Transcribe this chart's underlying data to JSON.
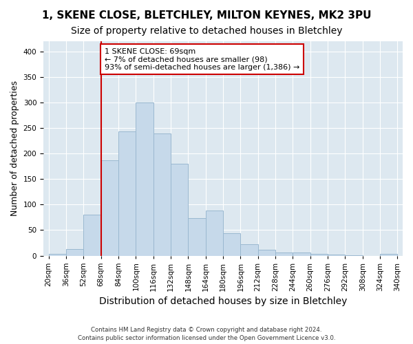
{
  "title1": "1, SKENE CLOSE, BLETCHLEY, MILTON KEYNES, MK2 3PU",
  "title2": "Size of property relative to detached houses in Bletchley",
  "xlabel": "Distribution of detached houses by size in Bletchley",
  "ylabel": "Number of detached properties",
  "footnote1": "Contains HM Land Registry data © Crown copyright and database right 2024.",
  "footnote2": "Contains public sector information licensed under the Open Government Licence v3.0.",
  "tick_labels": [
    "20sqm",
    "36sqm",
    "52sqm",
    "68sqm",
    "84sqm",
    "100sqm",
    "116sqm",
    "132sqm",
    "148sqm",
    "164sqm",
    "180sqm",
    "196sqm",
    "212sqm",
    "228sqm",
    "244sqm",
    "260sqm",
    "276sqm",
    "292sqm",
    "308sqm",
    "324sqm",
    "340sqm"
  ],
  "values": [
    4,
    13,
    80,
    187,
    243,
    300,
    240,
    180,
    73,
    88,
    44,
    22,
    11,
    6,
    6,
    4,
    2,
    1,
    0,
    3
  ],
  "bar_color": "#c6d9ea",
  "bar_edge_color": "#9ab8d0",
  "vline_color": "#cc0000",
  "vline_x": 3.0,
  "annotation_text": "1 SKENE CLOSE: 69sqm\n← 7% of detached houses are smaller (98)\n93% of semi-detached houses are larger (1,386) →",
  "annotation_box_facecolor": "#ffffff",
  "annotation_box_edgecolor": "#cc0000",
  "ylim": [
    0,
    420
  ],
  "yticks": [
    0,
    50,
    100,
    150,
    200,
    250,
    300,
    350,
    400
  ],
  "plot_bg_color": "#dde8f0",
  "title1_fontsize": 11,
  "title2_fontsize": 10,
  "xlabel_fontsize": 10,
  "ylabel_fontsize": 9,
  "tick_fontsize": 7.5,
  "annotation_fontsize": 8
}
